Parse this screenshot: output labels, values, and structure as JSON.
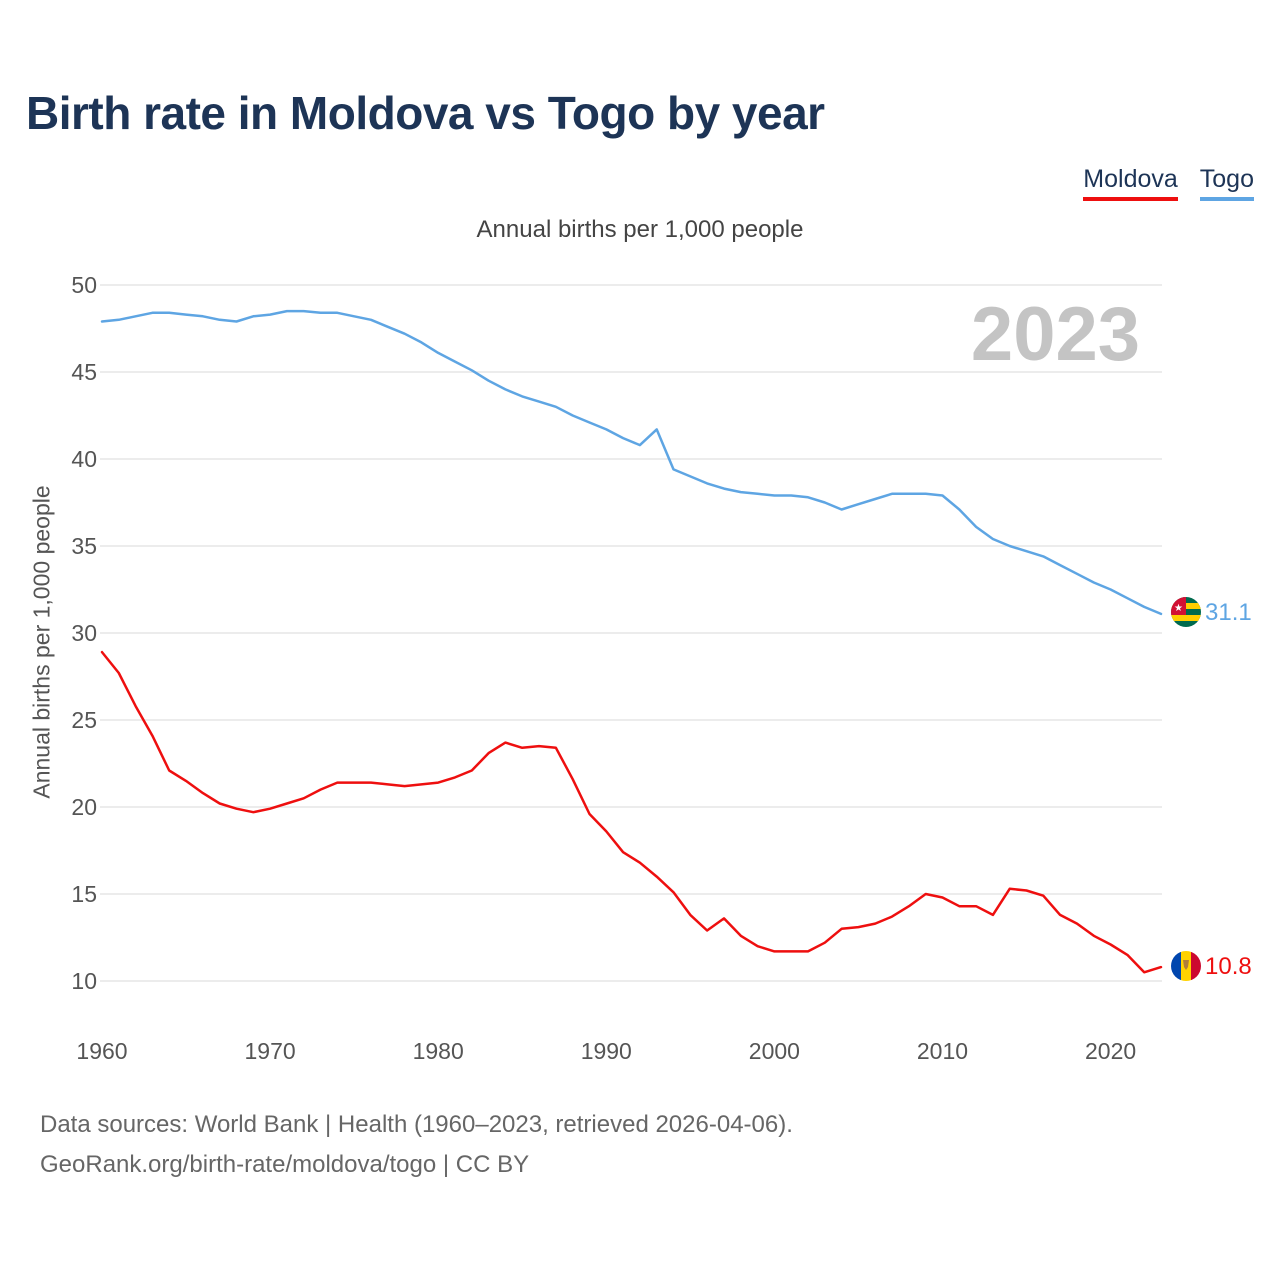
{
  "title": "Birth rate in Moldova vs Togo by year",
  "legend": {
    "moldova": "Moldova",
    "togo": "Togo"
  },
  "subtitle": "Annual births per 1,000 people",
  "footer": {
    "line1": "Data sources: World Bank | Health (1960–2023, retrieved 2026-04-06).",
    "line2": "GeoRank.org/birth-rate/moldova/togo | CC BY"
  },
  "chart_data": {
    "type": "line",
    "title": "Birth rate in Moldova vs Togo by year",
    "xlabel": "",
    "ylabel": "Annual births per 1,000 people",
    "xlim": [
      1960,
      2023
    ],
    "ylim": [
      7.5,
      50
    ],
    "y_ticks": [
      10,
      15,
      20,
      25,
      30,
      35,
      40,
      45,
      50
    ],
    "x_ticks": [
      1960,
      1970,
      1980,
      1990,
      2000,
      2010,
      2020
    ],
    "year_watermark": "2023",
    "grid": true,
    "x": [
      1960,
      1961,
      1962,
      1963,
      1964,
      1965,
      1966,
      1967,
      1968,
      1969,
      1970,
      1971,
      1972,
      1973,
      1974,
      1975,
      1976,
      1977,
      1978,
      1979,
      1980,
      1981,
      1982,
      1983,
      1984,
      1985,
      1986,
      1987,
      1988,
      1989,
      1990,
      1991,
      1992,
      1993,
      1994,
      1995,
      1996,
      1997,
      1998,
      1999,
      2000,
      2001,
      2002,
      2003,
      2004,
      2005,
      2006,
      2007,
      2008,
      2009,
      2010,
      2011,
      2012,
      2013,
      2014,
      2015,
      2016,
      2017,
      2018,
      2019,
      2020,
      2021,
      2022,
      2023
    ],
    "series": [
      {
        "name": "Moldova",
        "color": "#ee0f0f",
        "end_label": "10.8",
        "values": [
          28.9,
          27.7,
          25.8,
          24.1,
          22.1,
          21.5,
          20.8,
          20.2,
          19.9,
          19.7,
          19.9,
          20.2,
          20.5,
          21.0,
          21.4,
          21.4,
          21.4,
          21.3,
          21.2,
          21.3,
          21.4,
          21.7,
          22.1,
          23.1,
          23.7,
          23.4,
          23.5,
          23.4,
          21.6,
          19.6,
          18.6,
          17.4,
          16.8,
          16.0,
          15.1,
          13.8,
          12.9,
          13.6,
          12.6,
          12.0,
          11.7,
          11.7,
          11.7,
          12.2,
          13.0,
          13.1,
          13.3,
          13.7,
          14.3,
          15.0,
          14.8,
          14.3,
          14.3,
          13.8,
          15.3,
          15.2,
          14.9,
          13.8,
          13.3,
          12.6,
          12.1,
          11.5,
          10.5,
          10.8
        ]
      },
      {
        "name": "Togo",
        "color": "#5ea5e3",
        "end_label": "31.1",
        "values": [
          47.9,
          48.0,
          48.2,
          48.4,
          48.4,
          48.3,
          48.2,
          48.0,
          47.9,
          48.2,
          48.3,
          48.5,
          48.5,
          48.4,
          48.4,
          48.2,
          48.0,
          47.6,
          47.2,
          46.7,
          46.1,
          45.6,
          45.1,
          44.5,
          44.0,
          43.6,
          43.3,
          43.0,
          42.5,
          42.1,
          41.7,
          41.2,
          40.8,
          41.7,
          39.4,
          39.0,
          38.6,
          38.3,
          38.1,
          38.0,
          37.9,
          37.9,
          37.8,
          37.5,
          37.1,
          37.4,
          37.7,
          38.0,
          38.0,
          38.0,
          37.9,
          37.1,
          36.1,
          35.4,
          35.0,
          34.7,
          34.4,
          33.9,
          33.4,
          32.9,
          32.5,
          32.0,
          31.5,
          31.1
        ]
      }
    ]
  }
}
